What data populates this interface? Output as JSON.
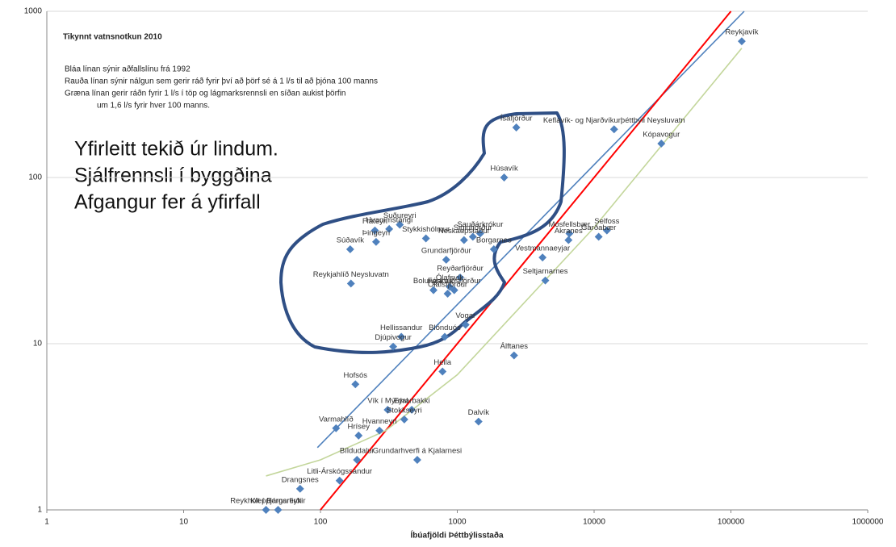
{
  "chart_data": {
    "type": "scatter",
    "title": "Tikynnt  vatnsnotkun 2010",
    "notes": [
      "Bláa línan sýnir aðfallslínu frá  1992",
      "Rauða línan sýnir nálgun sem gerir ráð fyrir því að þörf sé á 1 l/s til að þjóna 100 manns",
      "Græna línan gerir ráðn fyrir  1 l/s í töp og lágmarksrennsli en síðan aukist þörfin",
      "um 1,6 l/s fyrir hver 100 manns."
    ],
    "callout": [
      "Yfirleitt tekið úr lindum.",
      "Sjálfrennsli í byggðina",
      "Afgangur fer á yfirfall"
    ],
    "x_label": "Íbúafjöldi Þéttbýlisstaða",
    "xlog": true,
    "ylog": true,
    "xlim": [
      1,
      1000000
    ],
    "ylim": [
      1,
      1000
    ],
    "xticks": [
      1,
      10,
      100,
      1000,
      10000,
      100000,
      1000000
    ],
    "yticks": [
      1,
      10,
      100,
      1000
    ],
    "grid": true,
    "color": "#4f81bd",
    "point_labels": [
      "Reykjavík",
      "Ísafjörður",
      "Keflavík- og Njarðvíkurþéttbýli Neysluvatn",
      "Kópavogur",
      "Húsavík",
      "Flateyri",
      "Suðureyri",
      "Hvammstangi",
      "Þingeyri",
      "Súðavík",
      "Stykkishólmur",
      "Sauðárkrókur",
      "Neskaupstaður",
      "Siglufjörður",
      "Borgarnes",
      "Grundarfjörður",
      "Mosfellsbær",
      "Selfoss",
      "Garðabær",
      "Akranes",
      "Vestmannaeyjar",
      "Seltjarnarnes",
      "Reykjahlíð  Neysluvatn",
      "Reyðarfjörður",
      "Ólafsvík",
      "Bolungarvík",
      "Ólafsfjörður",
      "Fáskrúðsfjörður",
      "Vogar",
      "Blönduós",
      "Hellissandur",
      "Djúpivogur",
      "Álftanes",
      "Hella",
      "Hofsós",
      "Vík í Mýrdal",
      "Eyrarbakki",
      "Stokkseyri",
      "Dalvík",
      "Varmahlíð",
      "Hrísey",
      "Hvanneyri",
      "Bíldudalur",
      "Grundarhverfi á Kjalarnesi",
      "Litli-Árskógssandur",
      "Drangsnes",
      "Reykholt í Borgarfirði",
      "Kleppjárnsreykir"
    ],
    "x": [
      120000,
      2700,
      14000,
      31000,
      2200,
      250,
      380,
      318,
      255,
      165,
      590,
      1470,
      1120,
      1300,
      1850,
      830,
      6600,
      12400,
      10800,
      6500,
      4200,
      4400,
      167,
      1050,
      880,
      670,
      850,
      950,
      1150,
      810,
      390,
      340,
      2600,
      780,
      180,
      310,
      465,
      410,
      1430,
      130,
      190,
      270,
      185,
      510,
      138,
      71,
      40,
      49
    ],
    "values": [
      660,
      200,
      195,
      160,
      100,
      48,
      52,
      49,
      41,
      37,
      43,
      46,
      42,
      44,
      37,
      32,
      46,
      48,
      44,
      42,
      33,
      24,
      23,
      25,
      22,
      21,
      20,
      21,
      13,
      11,
      11,
      9.6,
      8.5,
      6.8,
      5.7,
      4,
      4,
      3.5,
      3.4,
      3.1,
      2.8,
      3,
      2,
      2,
      1.5,
      1.34,
      1,
      1
    ],
    "lines": [
      {
        "color": "#4f81bd",
        "x": [
          95,
          125000
        ],
        "values": [
          2.37,
          1000
        ]
      },
      {
        "color": "#ff0000",
        "x": [
          100,
          100000
        ],
        "values": [
          1,
          1000
        ]
      },
      {
        "color": "#c3d69b",
        "x": [
          40,
          100,
          300,
          1000,
          10000,
          120000
        ],
        "values": [
          1.6,
          2,
          3,
          6.5,
          50,
          600
        ]
      }
    ]
  }
}
